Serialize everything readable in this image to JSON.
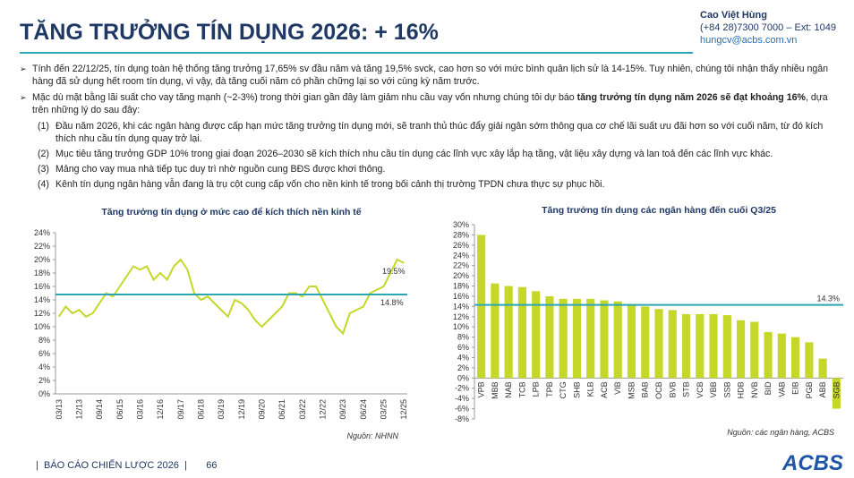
{
  "header": {
    "title": "TĂNG TRƯỞNG TÍN DỤNG 2026: + 16%",
    "contact": {
      "name": "Cao Việt Hùng",
      "phone": "(+84 28)7300 7000 – Ext: 1049",
      "email": "hungcv@acbs.com.vn"
    }
  },
  "bullets": [
    {
      "runs": [
        "Tính đến 22/12/25, tín dụng toàn hệ thống tăng trưởng 17,65% sv đầu năm và tăng 19,5% svck, cao hơn so với mức bình quân lịch sử là 14-15%. Tuy nhiên, chúng tôi nhận thấy nhiều ngân hàng đã sử dụng hết room tín dụng, vì vậy, đà tăng cuối năm có phần chững lại so với cùng kỳ năm trước."
      ]
    },
    {
      "runs": [
        "Mặc dù mặt bằng lãi suất cho vay tăng mạnh (~2-3%) trong thời gian gần đây làm giảm nhu cầu vay vốn nhưng chúng tôi dự báo ",
        "tăng trưởng tín dụng năm 2026 sẽ đạt khoảng 16%",
        ", dựa trên những lý do sau đây:"
      ]
    }
  ],
  "reasons": [
    {
      "number": "(1)",
      "text": "Đầu năm 2026, khi các ngân hàng được cấp hạn mức tăng trưởng tín dụng mới, sẽ tranh thủ thúc đẩy giải ngân sớm thông qua cơ chế lãi suất ưu đãi hơn so với cuối năm, từ đó kích thích nhu cầu tín dụng quay trở lại."
    },
    {
      "number": "(2)",
      "text": "Mục tiêu tăng trưởng GDP 10% trong giai đoạn 2026–2030 sẽ kích thích nhu cầu tín dụng các lĩnh vực xây lắp hạ tầng, vật liệu xây dựng và lan toả đến các lĩnh vực khác."
    },
    {
      "number": "(3)",
      "text": "Mảng cho vay mua nhà tiếp tục duy trì nhờ nguồn cung BĐS được khơi thông."
    },
    {
      "number": "(4)",
      "text": "Kênh tín dụng ngân hàng vẫn đang là trụ cột cung cấp vốn cho nền kinh tế trong bối cảnh thị trường TPDN chưa thực sự phục hồi."
    }
  ],
  "chart_data": [
    {
      "type": "line",
      "title": "Tăng trưởng tín dụng ở mức cao để kích thích nền kinh tế",
      "color": "#c5d82a",
      "source": "Nguồn: NHNN",
      "categories": [
        "03/13",
        null,
        null,
        "12/13",
        null,
        null,
        "09/14",
        null,
        null,
        "06/15",
        null,
        null,
        "03/16",
        null,
        null,
        "12/16",
        null,
        null,
        "09/17",
        null,
        null,
        "06/18",
        null,
        null,
        "03/19",
        null,
        null,
        "12/19",
        null,
        null,
        "09/20",
        null,
        null,
        "06/21",
        null,
        null,
        "03/22",
        null,
        null,
        "12/22",
        null,
        null,
        "09/23",
        null,
        null,
        "06/24",
        null,
        null,
        "03/25",
        null,
        null,
        "12/25"
      ],
      "values": [
        11.5,
        13,
        12,
        12.5,
        11.5,
        12,
        13.5,
        15,
        14.5,
        16,
        17.5,
        19,
        18.5,
        19,
        17,
        18,
        17,
        19,
        20,
        18.5,
        15,
        14,
        14.5,
        13.5,
        12.5,
        11.5,
        14,
        13.5,
        12.5,
        11,
        10,
        11,
        12,
        13,
        15,
        15,
        14.5,
        16,
        16,
        14,
        12,
        10,
        9,
        12,
        12.5,
        13,
        15,
        15.5,
        16,
        18,
        20,
        19.5
      ],
      "end_label": {
        "value": 19.5,
        "label": "19.5%"
      },
      "reference": {
        "value": 14.8,
        "label": "14.8%",
        "color": "#2aa6b4"
      },
      "ylim": [
        0,
        24
      ],
      "yticks": [
        {
          "value": 0,
          "label": "0%"
        },
        {
          "value": 2,
          "label": "2%"
        },
        {
          "value": 4,
          "label": "4%"
        },
        {
          "value": 6,
          "label": "6%"
        },
        {
          "value": 8,
          "label": "8%"
        },
        {
          "value": 10,
          "label": "10%"
        },
        {
          "value": 12,
          "label": "12%"
        },
        {
          "value": 14,
          "label": "14%"
        },
        {
          "value": 16,
          "label": "16%"
        },
        {
          "value": 18,
          "label": "18%"
        },
        {
          "value": 20,
          "label": "20%"
        },
        {
          "value": 22,
          "label": "22%"
        },
        {
          "value": 24,
          "label": "24%"
        }
      ]
    },
    {
      "type": "bar",
      "title": "Tăng trưởng tín dụng các ngân hàng đến cuối Q3/25",
      "color": "#c5d82a",
      "source": "Nguồn: các ngân hàng, ACBS",
      "categories": [
        "VPB",
        "MBB",
        "NAB",
        "TCB",
        "LPB",
        "TPB",
        "CTG",
        "SHB",
        "KLB",
        "ACB",
        "VIB",
        "MSB",
        "BAB",
        "OCB",
        "BVB",
        "STB",
        "VCB",
        "VBB",
        "SSB",
        "HDB",
        "NVB",
        "BID",
        "VAB",
        "EIB",
        "PGB",
        "ABB",
        "SGB"
      ],
      "values": [
        28,
        18.5,
        18,
        17.8,
        17,
        16,
        15.5,
        15.5,
        15.5,
        15.2,
        15,
        14.5,
        14,
        13.5,
        13.3,
        12.5,
        12.5,
        12.5,
        12.3,
        11.3,
        11,
        9,
        8.7,
        8,
        7,
        3.8,
        -6
      ],
      "reference": {
        "value": 14.3,
        "label": "14.3%",
        "color": "#2aa6b4"
      },
      "ylim": [
        -8,
        30
      ],
      "yticks": [
        {
          "value": -8,
          "label": "-8%"
        },
        {
          "value": -6,
          "label": "-6%"
        },
        {
          "value": -4,
          "label": "-4%"
        },
        {
          "value": -2,
          "label": "-2%"
        },
        {
          "value": 0,
          "label": "0%"
        },
        {
          "value": 2,
          "label": "2%"
        },
        {
          "value": 4,
          "label": "4%"
        },
        {
          "value": 6,
          "label": "6%"
        },
        {
          "value": 8,
          "label": "8%"
        },
        {
          "value": 10,
          "label": "10%"
        },
        {
          "value": 12,
          "label": "12%"
        },
        {
          "value": 14,
          "label": "14%"
        },
        {
          "value": 16,
          "label": "16%"
        },
        {
          "value": 18,
          "label": "18%"
        },
        {
          "value": 20,
          "label": "20%"
        },
        {
          "value": 22,
          "label": "22%"
        },
        {
          "value": 24,
          "label": "24%"
        },
        {
          "value": 26,
          "label": "26%"
        },
        {
          "value": 28,
          "label": "28%"
        },
        {
          "value": 30,
          "label": "30%"
        }
      ]
    }
  ],
  "footer": {
    "report": "BÁO CÁO CHIẾN LƯỢC 2026",
    "page": "66",
    "logo": "ACBS"
  }
}
